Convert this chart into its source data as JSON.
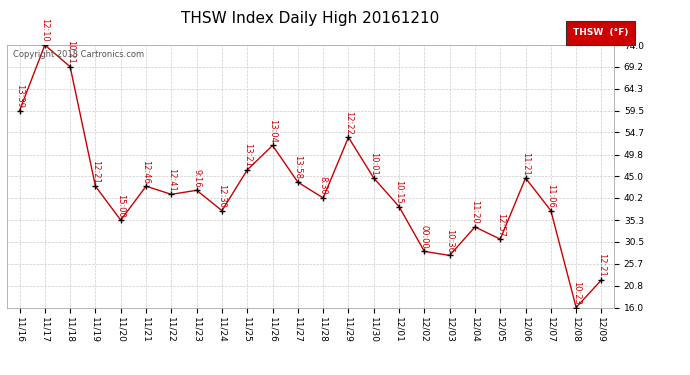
{
  "title": "THSW Index Daily High 20161210",
  "copyright": "Copyright 2018 Cartronics.com",
  "legend_label": "THSW  (°F)",
  "legend_bg": "#cc0000",
  "legend_text_color": "#ffffff",
  "x_labels": [
    "11/16",
    "11/17",
    "11/18",
    "11/19",
    "11/20",
    "11/21",
    "11/22",
    "11/23",
    "11/24",
    "11/25",
    "11/26",
    "11/27",
    "11/28",
    "11/29",
    "11/30",
    "12/01",
    "12/02",
    "12/03",
    "12/04",
    "12/05",
    "12/06",
    "12/07",
    "12/08",
    "12/09"
  ],
  "y_values": [
    59.5,
    74.0,
    69.2,
    42.8,
    35.3,
    42.8,
    41.0,
    41.9,
    37.4,
    46.4,
    51.8,
    43.7,
    40.2,
    53.6,
    44.6,
    38.3,
    28.4,
    27.5,
    33.8,
    31.1,
    44.6,
    37.4,
    16.0,
    22.1
  ],
  "point_labels": [
    "13:39",
    "12:10",
    "10:21",
    "12:21",
    "15:00",
    "12:46",
    "12:41",
    "9:16",
    "12:30",
    "13:21",
    "13:04",
    "13:58",
    "8:30",
    "12:22",
    "10:01",
    "10:15",
    "00:00",
    "10:36",
    "11:20",
    "12:57",
    "11:21",
    "11:06",
    "10:23",
    "12:21"
  ],
  "line_color": "#cc0000",
  "marker_color": "#000000",
  "grid_color": "#cccccc",
  "bg_color": "#ffffff",
  "ylim": [
    16.0,
    74.0
  ],
  "yticks": [
    16.0,
    20.8,
    25.7,
    30.5,
    35.3,
    40.2,
    45.0,
    49.8,
    54.7,
    59.5,
    64.3,
    69.2,
    74.0
  ],
  "title_fontsize": 11,
  "label_fontsize": 6.5,
  "point_label_fontsize": 6,
  "copyright_fontsize": 6
}
